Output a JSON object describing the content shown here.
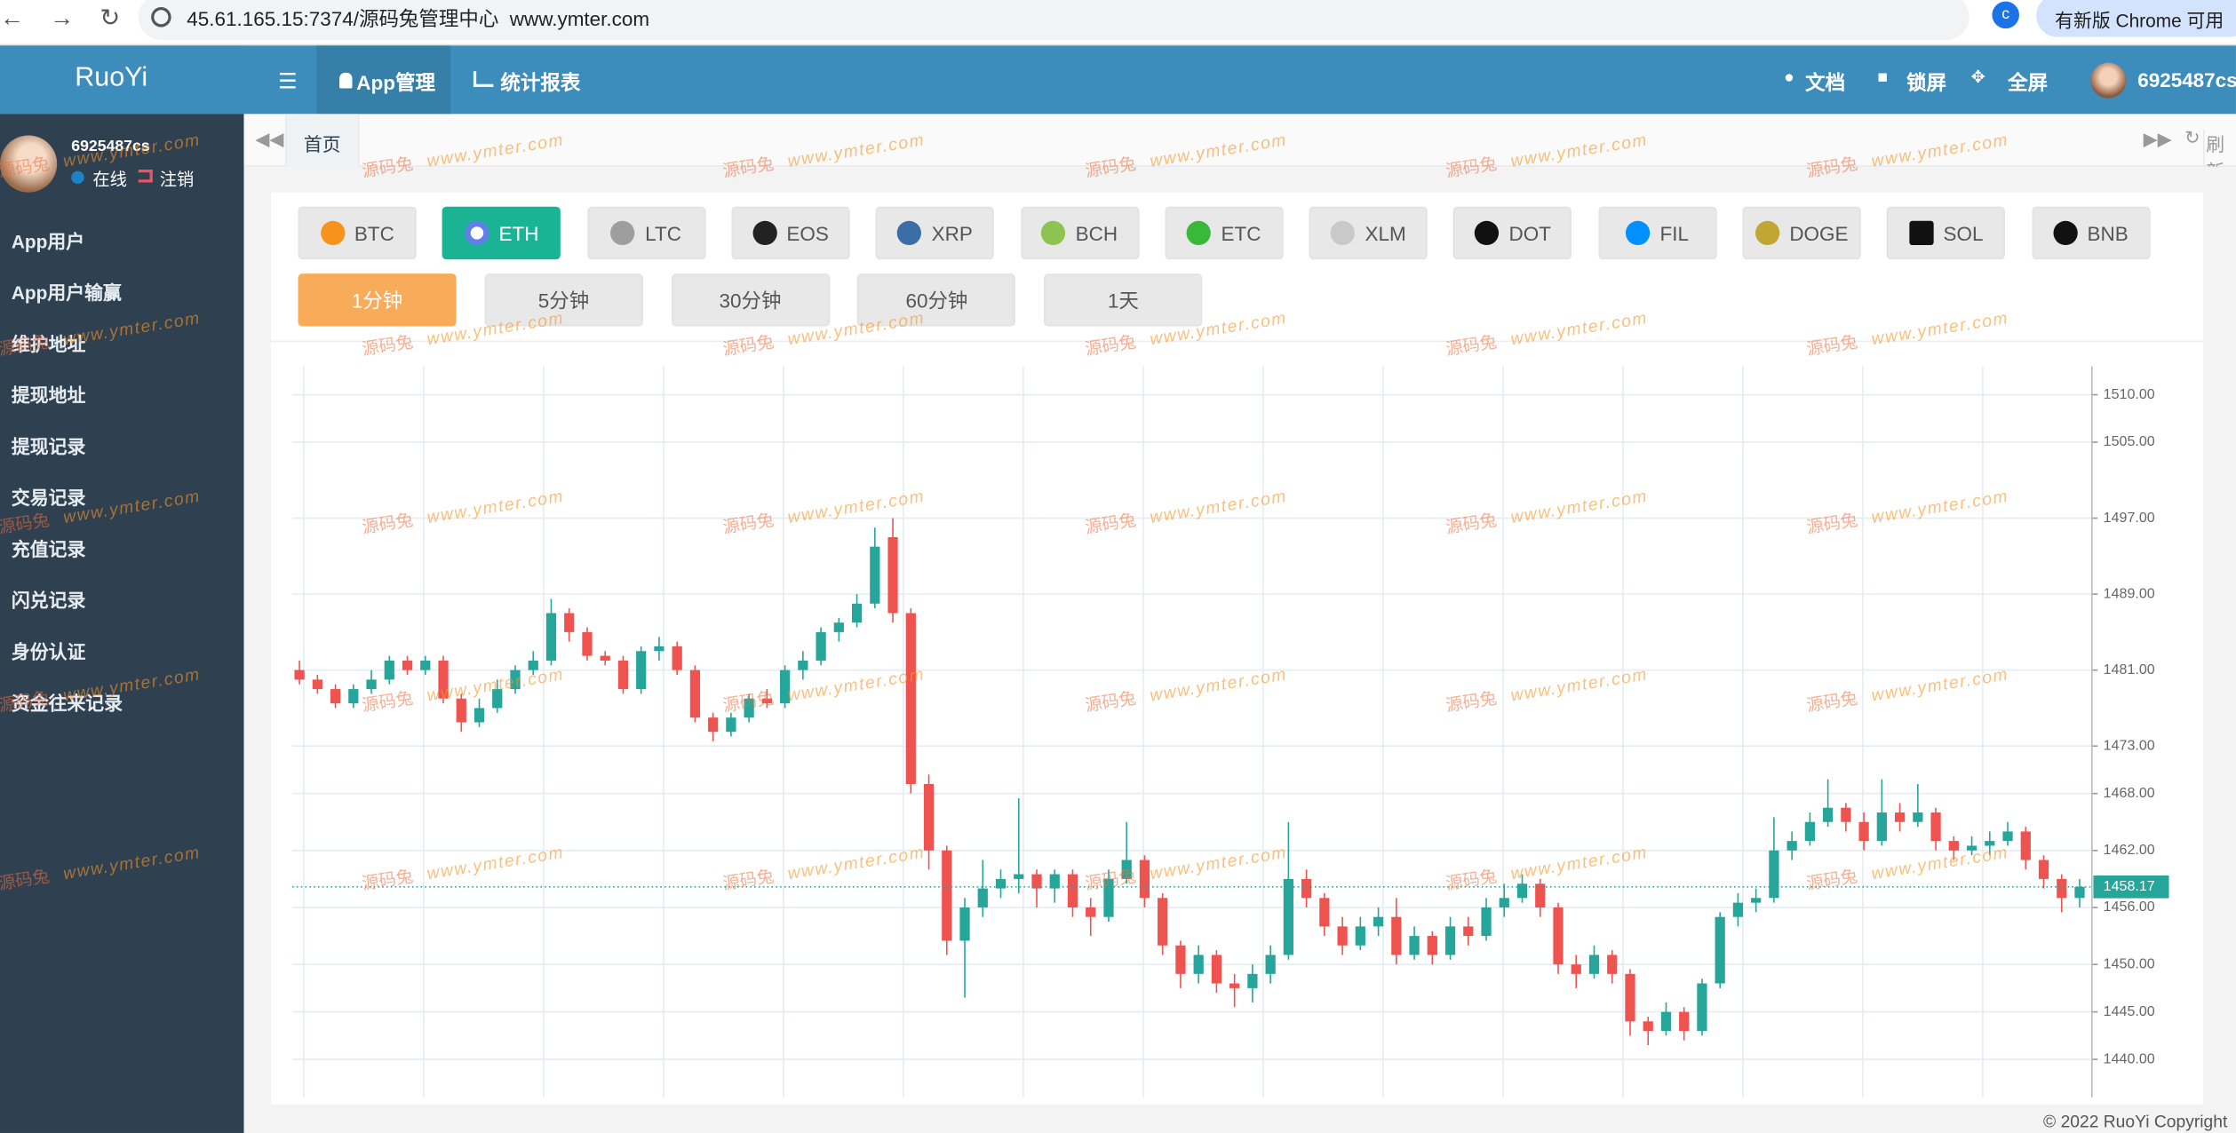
{
  "browser": {
    "address": "45.61.165.15:7374/源码兔管理中心  www.ymter.com",
    "profile": "c",
    "update": "有新版 Chrome 可用"
  },
  "header": {
    "logo": "RuoYi",
    "menu": [
      "App管理",
      "统计报表"
    ],
    "tools": [
      "文档",
      "锁屏",
      "全屏"
    ],
    "user": "6925487cs"
  },
  "sidebar": {
    "user": "6925487cs",
    "status": "在线",
    "logout": "注销",
    "menu": [
      "App用户",
      "App用户输赢",
      "维护地址",
      "提现地址",
      "提现记录",
      "交易记录",
      "充值记录",
      "闪兑记录",
      "身份认证",
      "资金往来记录"
    ]
  },
  "tabs": {
    "items": [
      "首页"
    ],
    "refresh": "刷新"
  },
  "coins": {
    "items": [
      "BTC",
      "ETH",
      "LTC",
      "EOS",
      "XRP",
      "BCH",
      "ETC",
      "XLM",
      "DOT",
      "FIL",
      "DOGE",
      "SOL",
      "BNB"
    ],
    "active": 1
  },
  "intervals": {
    "items": [
      "1分钟",
      "5分钟",
      "30分钟",
      "60分钟",
      "1天"
    ],
    "active": 0
  },
  "watermark": [
    "源码兔",
    "www.ymter.com"
  ],
  "chart_data": {
    "type": "candlestick",
    "open": [
      1481,
      1480,
      1479,
      1477.5,
      1479,
      1480,
      1482,
      1481,
      1482,
      1478,
      1475.5,
      1477,
      1479,
      1481,
      1482,
      1487,
      1485,
      1482.5,
      1482,
      1479,
      1483,
      1483.5,
      1481,
      1476,
      1474.5,
      1476,
      1478,
      1477.5,
      1481,
      1482,
      1485,
      1486,
      1488,
      1495,
      1487,
      1469,
      1462,
      1452.5,
      1456,
      1458,
      1459,
      1459.5,
      1458,
      1459.5,
      1456,
      1455,
      1459,
      1461,
      1457,
      1452,
      1449,
      1451,
      1448,
      1447.5,
      1449,
      1451,
      1459,
      1457,
      1454,
      1452,
      1454,
      1455,
      1451,
      1453,
      1451,
      1454,
      1453,
      1456,
      1457,
      1458.5,
      1456,
      1450,
      1449,
      1451,
      1449,
      1444,
      1443,
      1445,
      1443,
      1448,
      1455,
      1456.5,
      1457,
      1462,
      1463,
      1465,
      1466.5,
      1465,
      1463,
      1466,
      1465,
      1466,
      1463,
      1462,
      1462.5,
      1463,
      1464,
      1461,
      1459,
      1457
    ],
    "high": [
      1482,
      1480.5,
      1479.5,
      1479.5,
      1481,
      1482.5,
      1482.5,
      1482.5,
      1482.5,
      1478.5,
      1478,
      1480,
      1481.5,
      1483,
      1488.5,
      1487.5,
      1485.5,
      1483,
      1482.5,
      1483.5,
      1484.5,
      1484,
      1481.5,
      1476.5,
      1476.5,
      1478.5,
      1479,
      1481.5,
      1483,
      1485.5,
      1486.5,
      1489,
      1496,
      1497,
      1487.5,
      1470,
      1462.5,
      1457,
      1461,
      1460,
      1467.5,
      1460,
      1460,
      1460,
      1457,
      1460,
      1465,
      1461.5,
      1457.5,
      1452.5,
      1452,
      1451.5,
      1449,
      1450,
      1452,
      1465,
      1460,
      1457.5,
      1455,
      1455,
      1456,
      1457,
      1454,
      1453.5,
      1455,
      1455,
      1457,
      1458.5,
      1459.5,
      1459,
      1456.5,
      1451,
      1452,
      1451.5,
      1449.5,
      1444.5,
      1446,
      1445.5,
      1448.5,
      1455.5,
      1457.5,
      1458,
      1465.5,
      1464,
      1466,
      1469.5,
      1467,
      1466,
      1469.5,
      1467,
      1469,
      1466.5,
      1463.5,
      1463.5,
      1464,
      1465,
      1464.5,
      1461.5,
      1459.5,
      1459
    ],
    "low": [
      1479.5,
      1478.5,
      1477,
      1477,
      1478.5,
      1479.5,
      1480.5,
      1480.5,
      1477.5,
      1474.5,
      1475,
      1476.5,
      1478.5,
      1480.5,
      1481.5,
      1484,
      1482,
      1481.5,
      1478.5,
      1478.5,
      1482,
      1480.5,
      1475.5,
      1473.5,
      1474,
      1475.5,
      1477,
      1477,
      1480,
      1481.5,
      1484,
      1485.5,
      1487.5,
      1486,
      1468,
      1460,
      1451,
      1446.5,
      1455,
      1457,
      1457.5,
      1456,
      1456.5,
      1455,
      1453,
      1454.5,
      1458.5,
      1456,
      1451,
      1447.5,
      1448,
      1447,
      1445.5,
      1446,
      1448,
      1450.5,
      1456,
      1453,
      1451,
      1451.5,
      1453,
      1450,
      1450.5,
      1450,
      1450.5,
      1452,
      1452.5,
      1455,
      1456.5,
      1455,
      1449,
      1447.5,
      1448.5,
      1448,
      1442.5,
      1441.5,
      1442.5,
      1442,
      1442.5,
      1447.5,
      1454,
      1455.5,
      1456.5,
      1461,
      1462.5,
      1464.5,
      1464,
      1462,
      1462.5,
      1464,
      1464.5,
      1462,
      1461,
      1461.5,
      1461.5,
      1462.5,
      1460,
      1458,
      1455.5,
      1456
    ],
    "close": [
      1480,
      1479,
      1477.5,
      1479,
      1480,
      1482,
      1481,
      1482,
      1478,
      1475.5,
      1477,
      1479,
      1481,
      1482,
      1487,
      1485,
      1482.5,
      1482,
      1479,
      1483,
      1483.5,
      1481,
      1476,
      1474.5,
      1476,
      1478,
      1477.5,
      1481,
      1482,
      1485,
      1486,
      1488,
      1494,
      1487,
      1469,
      1462,
      1452.5,
      1456,
      1458,
      1459,
      1459.5,
      1458,
      1459.5,
      1456,
      1455,
      1459,
      1461,
      1457,
      1452,
      1449,
      1451,
      1448,
      1447.5,
      1449,
      1451,
      1459,
      1457,
      1454,
      1452,
      1454,
      1455,
      1451,
      1453,
      1451,
      1454,
      1453,
      1456,
      1457,
      1458.5,
      1456,
      1450,
      1449,
      1451,
      1449,
      1444,
      1443,
      1445,
      1443,
      1448,
      1455,
      1456.5,
      1457,
      1462,
      1463,
      1465,
      1466.5,
      1465,
      1463,
      1466,
      1465,
      1466,
      1463,
      1462,
      1462.5,
      1463,
      1464,
      1461,
      1459,
      1457,
      1458.17
    ],
    "ylim": [
      1436,
      1513
    ],
    "yticks": [
      {
        "value": 1510,
        "label": "1510.00"
      },
      {
        "value": 1505,
        "label": "1505.00"
      },
      {
        "value": 1497,
        "label": "1497.00"
      },
      {
        "value": 1489,
        "label": "1489.00"
      },
      {
        "value": 1481,
        "label": "1481.00"
      },
      {
        "value": 1473,
        "label": "1473.00"
      },
      {
        "value": 1468,
        "label": "1468.00"
      },
      {
        "value": 1462,
        "label": "1462.00"
      },
      {
        "value": 1456,
        "label": "1456.00"
      },
      {
        "value": 1450,
        "label": "1450.00"
      },
      {
        "value": 1445,
        "label": "1445.00"
      },
      {
        "value": 1440,
        "label": "1440.00"
      }
    ],
    "grid": true,
    "up_color": "#26a69a",
    "down_color": "#ef5350"
  },
  "footer": "© 2022 RuoYi Copyright"
}
